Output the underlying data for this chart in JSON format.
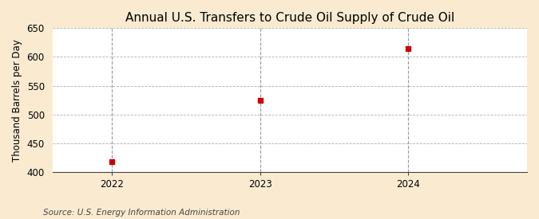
{
  "title": "Annual U.S. Transfers to Crude Oil Supply of Crude Oil",
  "ylabel": "Thousand Barrels per Day",
  "source_text": "Source: U.S. Energy Information Administration",
  "x_values": [
    2022,
    2023,
    2024
  ],
  "y_values": [
    418,
    524,
    614
  ],
  "ylim": [
    400,
    650
  ],
  "yticks": [
    400,
    450,
    500,
    550,
    600,
    650
  ],
  "xticks": [
    2022,
    2023,
    2024
  ],
  "xlim": [
    2021.6,
    2024.8
  ],
  "marker_color": "#cc0000",
  "marker_size": 5,
  "figure_bg_color": "#faebd0",
  "plot_bg_color": "#ffffff",
  "grid_color": "#b0b0b0",
  "vline_color": "#999999",
  "title_fontsize": 11,
  "label_fontsize": 8.5,
  "tick_fontsize": 8.5,
  "source_fontsize": 7.5,
  "title_fontweight": "normal"
}
